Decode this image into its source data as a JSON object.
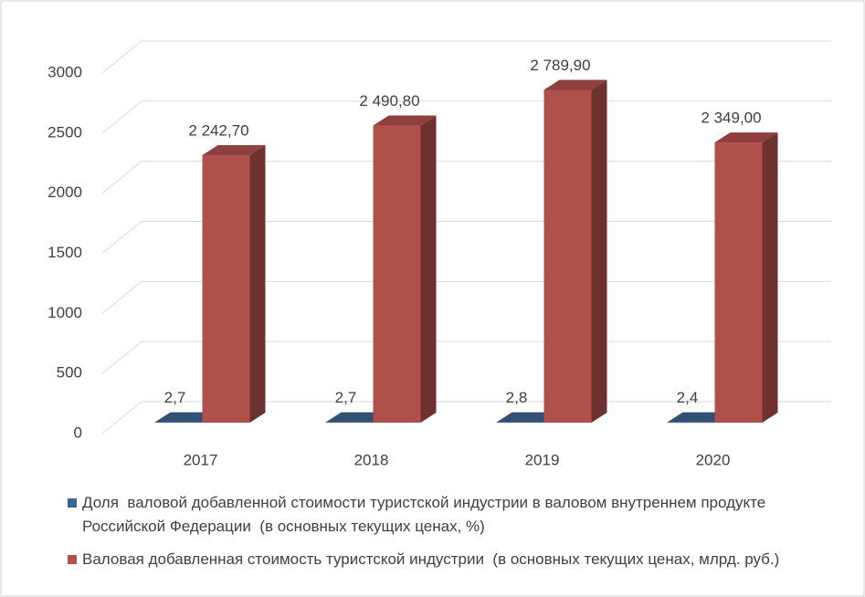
{
  "chart_data": {
    "type": "bar3d",
    "categories": [
      "2017",
      "2018",
      "2019",
      "2020"
    ],
    "series": [
      {
        "name": "Доля  валовой добавленной стоимости туристской индустрии в валовом внутреннем продукте Российской Федерации  (в основных текущих ценах, %)",
        "color": "#3d6491",
        "values": [
          2.7,
          2.7,
          2.8,
          2.4
        ],
        "value_labels": [
          "2,7",
          "2,7",
          "2,8",
          "2,4"
        ]
      },
      {
        "name": "Валовая добавленная стоимость туристской индустрии  (в основных текущих ценах, млрд. руб.)",
        "color": "#b0504d",
        "values": [
          2242.7,
          2490.8,
          2789.9,
          2349.0
        ],
        "value_labels": [
          "2 242,70",
          "2 490,80",
          "2 789,90",
          "2 349,00"
        ]
      }
    ],
    "ylim": [
      0,
      3000
    ],
    "yticks": [
      0,
      500,
      1000,
      1500,
      2000,
      2500,
      3000
    ],
    "grid": true,
    "legend": "bottom"
  }
}
